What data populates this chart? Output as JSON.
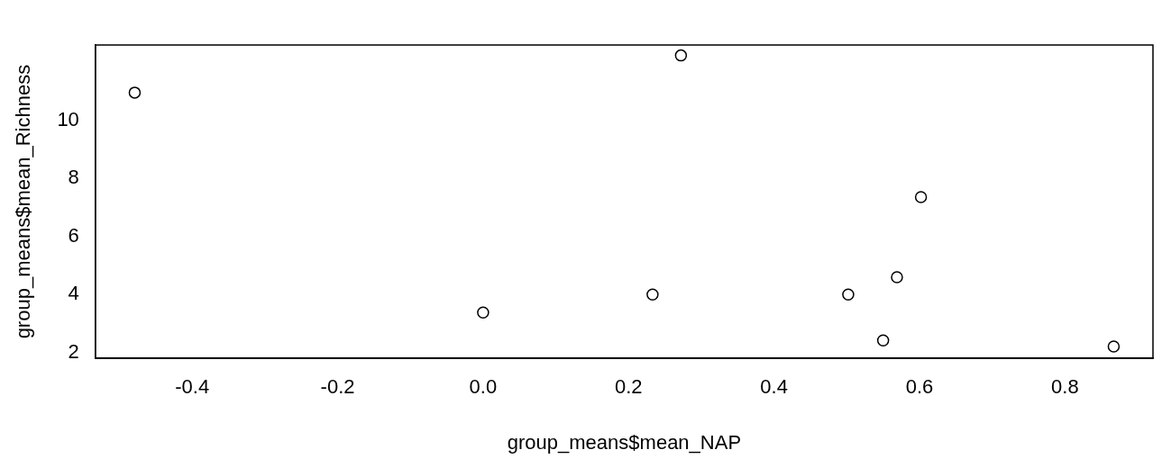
{
  "chart_data": {
    "type": "scatter",
    "xlabel": "group_means$mean_NAP",
    "ylabel": "group_means$mean_Richness",
    "x": [
      -0.479,
      0.272,
      0.602,
      0.569,
      0.502,
      0.233,
      0.0,
      0.55,
      0.867
    ],
    "series": [
      {
        "color": "#000000",
        "values": [
          10.96,
          12.24,
          7.36,
          4.6,
          4.0,
          4.0,
          3.38,
          2.42,
          2.21
        ]
      }
    ],
    "xlim": [
      -0.533,
      0.921
    ],
    "ylim": [
      1.8,
      12.6
    ],
    "xticks": [
      -0.4,
      -0.2,
      {
        "value": 0,
        "label": "0.0"
      },
      0.2,
      0.4,
      0.6,
      0.8
    ],
    "yticks": [
      2,
      4,
      6,
      8,
      10
    ],
    "grid": false,
    "legend": false,
    "marker": "circle"
  }
}
